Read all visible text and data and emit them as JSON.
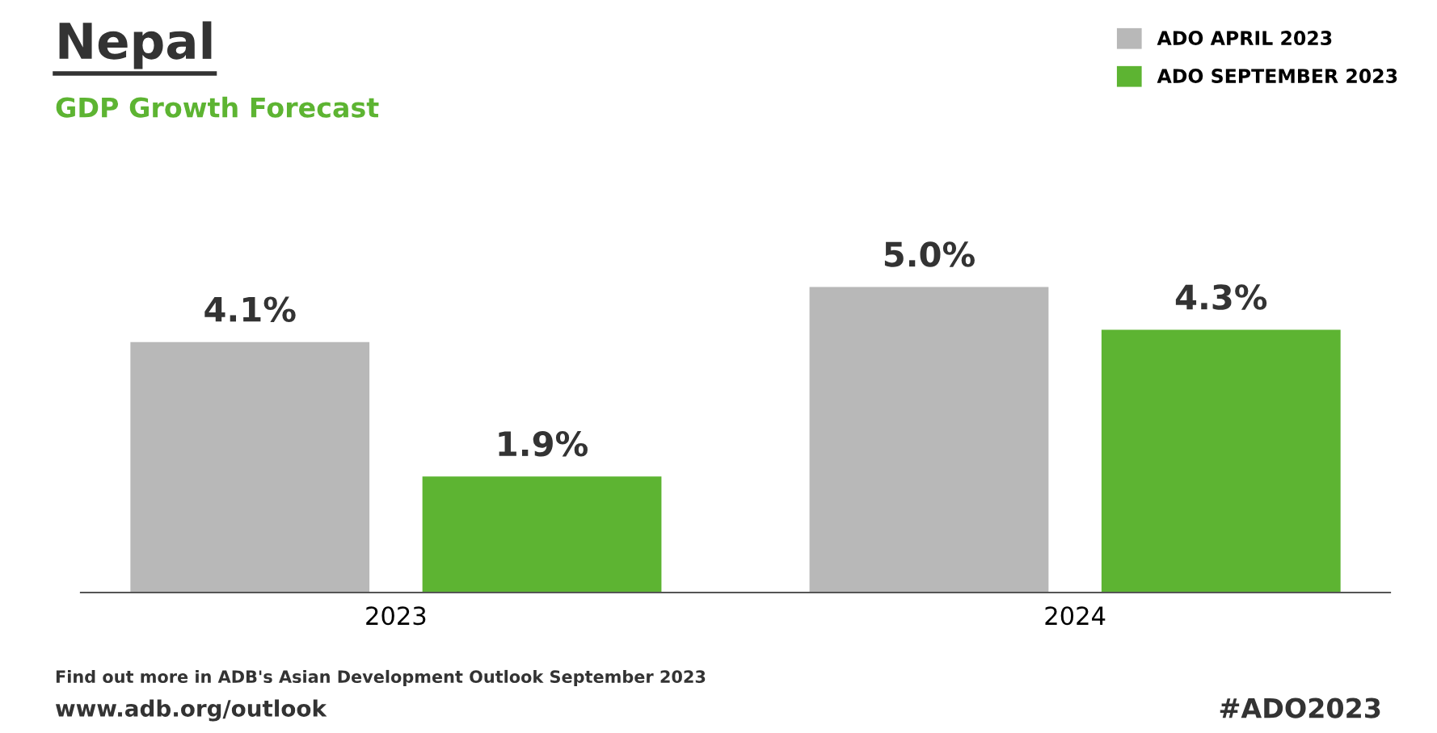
{
  "chart_data": {
    "type": "bar",
    "title": "Nepal",
    "subtitle": "GDP Growth Forecast",
    "categories": [
      "2023",
      "2024"
    ],
    "series": [
      {
        "name": "ADO APRIL 2023",
        "color": "#b8b8b8",
        "values": [
          4.1,
          5.0
        ],
        "value_labels": [
          "4.1%",
          "5.0%"
        ]
      },
      {
        "name": "ADO SEPTEMBER 2023",
        "color": "#5db432",
        "values": [
          1.9,
          4.3
        ],
        "value_labels": [
          "1.9%",
          "4.3%"
        ]
      }
    ],
    "tick_labels": "x",
    "grid": false,
    "legend": "top right",
    "annotations": [
      "Find out more in ADB's Asian Development Outlook September 2023",
      "www.adb.org/outlook",
      "#ADO2023"
    ]
  }
}
